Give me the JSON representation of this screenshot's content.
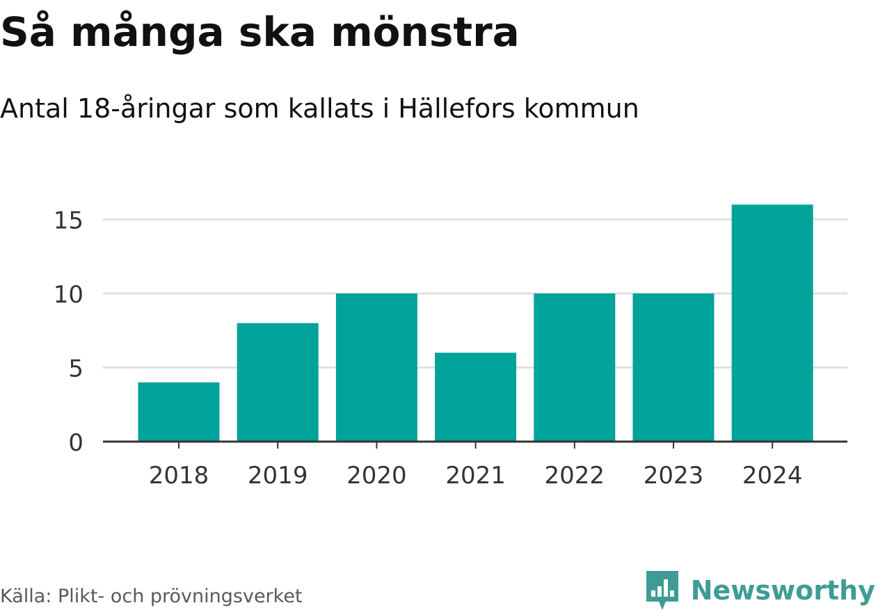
{
  "header": {
    "title": "Så många ska mönstra",
    "subtitle": "Antal 18-åringar som kallats i Hällefors kommun"
  },
  "footer": {
    "source": "Källa: Plikt- och prövningsverket",
    "brand": "Newsworthy",
    "brand_icon": "newsworthy-logo-icon"
  },
  "colors": {
    "bar": "#00a39a",
    "grid": "#dcdcdc",
    "axis": "#333333",
    "brand": "#3e9c95"
  },
  "chart_data": {
    "type": "bar",
    "categories": [
      "2018",
      "2019",
      "2020",
      "2021",
      "2022",
      "2023",
      "2024"
    ],
    "values": [
      4,
      8,
      10,
      6,
      10,
      10,
      16
    ],
    "title": "Så många ska mönstra",
    "subtitle": "Antal 18-åringar som kallats i Hällefors kommun",
    "xlabel": "",
    "ylabel": "",
    "ylim": [
      0,
      16
    ],
    "yticks": [
      0,
      5,
      10,
      15
    ],
    "ytick_labels": [
      "0",
      "5",
      "10",
      "15"
    ],
    "grid": true,
    "legend": "none"
  }
}
